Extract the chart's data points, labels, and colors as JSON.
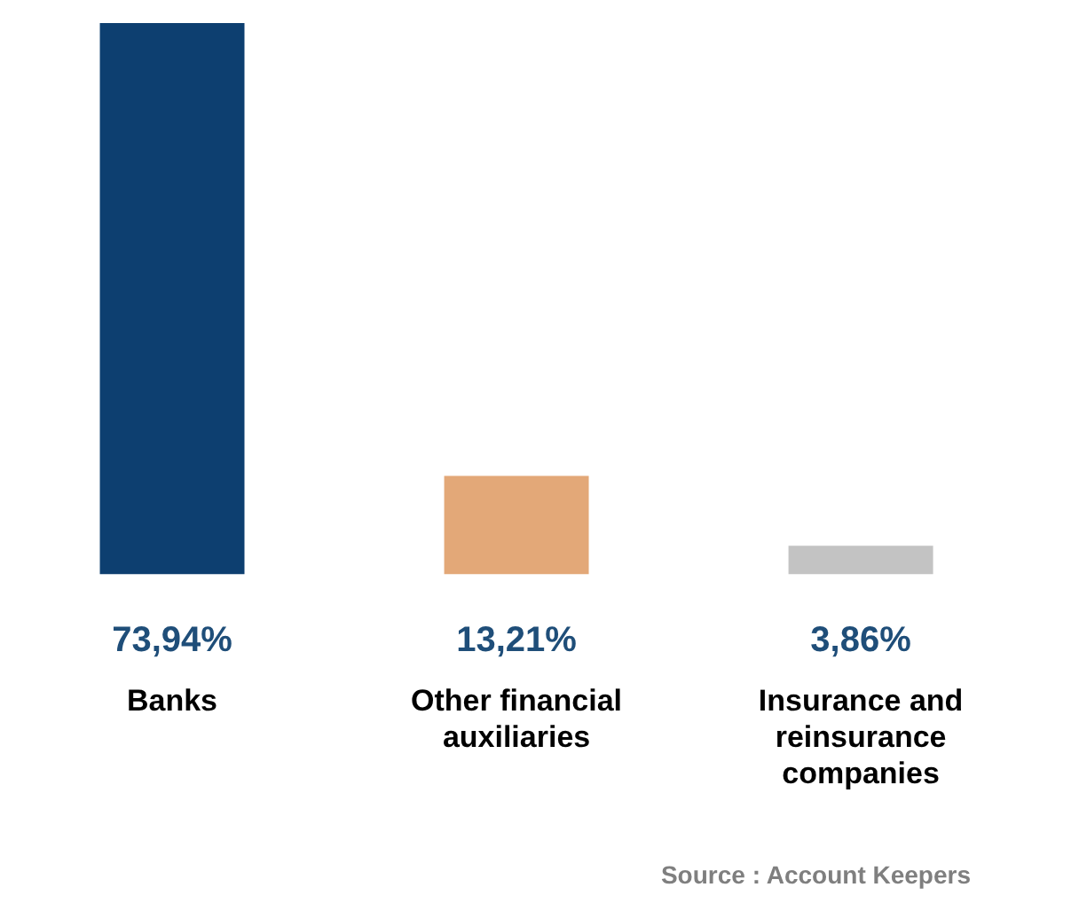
{
  "chart_data": {
    "type": "bar",
    "categories": [
      "Banks",
      "Other financial auxiliaries",
      "Insurance and reinsurance companies"
    ],
    "values": [
      73.94,
      13.21,
      3.86
    ],
    "colors": [
      "#0d3f70",
      "#e3a878",
      "#c3c3c3"
    ],
    "value_labels": [
      "73,94%",
      "13,21%",
      "3,86%"
    ],
    "grid": false,
    "legend": false,
    "annotations": [
      "Source : Account Keepers"
    ]
  }
}
